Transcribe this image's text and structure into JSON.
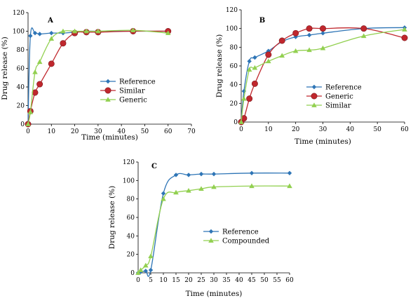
{
  "chart_data": [
    {
      "id": "A",
      "type": "line",
      "panel_label": "A",
      "xlabel": "Time (minutes)",
      "ylabel": "Drug release (%)",
      "xlim": [
        0,
        70
      ],
      "ylim": [
        0,
        120
      ],
      "xticks": [
        0,
        10,
        20,
        30,
        40,
        50,
        60,
        70
      ],
      "yticks": [
        0,
        20,
        40,
        60,
        80,
        100,
        120
      ],
      "grid": false,
      "legend_position": "center-right",
      "series": [
        {
          "name": "Reference",
          "color": "#2e75b6",
          "marker": "diamond",
          "x": [
            0,
            1,
            3,
            5,
            10,
            15,
            20,
            25,
            30,
            45,
            60
          ],
          "y": [
            0,
            95,
            98,
            97,
            98,
            98,
            99,
            100,
            100,
            100,
            100
          ]
        },
        {
          "name": "Similar",
          "color": "#c0272d",
          "marker": "circle",
          "x": [
            0,
            1,
            3,
            5,
            10,
            15,
            20,
            25,
            30,
            45,
            60
          ],
          "y": [
            0,
            14,
            34,
            43,
            65,
            87,
            98,
            99,
            99,
            100,
            100
          ]
        },
        {
          "name": "Generic",
          "color": "#92d050",
          "marker": "triangle",
          "x": [
            0,
            1,
            3,
            5,
            10,
            15,
            20,
            25,
            30,
            45,
            60
          ],
          "y": [
            0,
            13,
            56,
            67,
            92,
            100,
            100,
            100,
            100,
            101,
            98
          ]
        }
      ]
    },
    {
      "id": "B",
      "type": "line",
      "panel_label": "B",
      "xlabel": "Time (minutes)",
      "ylabel": "Drug release (%)",
      "xlim": [
        0,
        60
      ],
      "ylim": [
        0,
        120
      ],
      "xticks": [
        0,
        10,
        20,
        30,
        40,
        50,
        60
      ],
      "yticks": [
        0,
        20,
        40,
        60,
        80,
        100,
        120
      ],
      "grid": false,
      "legend_position": "bottom-right",
      "series": [
        {
          "name": "Reference",
          "color": "#2e75b6",
          "marker": "diamond",
          "x": [
            0,
            1,
            3,
            5,
            10,
            15,
            20,
            25,
            30,
            45,
            60
          ],
          "y": [
            0,
            33,
            65,
            69,
            76,
            86,
            91,
            93,
            95,
            100,
            101
          ]
        },
        {
          "name": "Generic",
          "color": "#c0272d",
          "marker": "circle",
          "x": [
            0,
            1,
            3,
            5,
            10,
            15,
            20,
            25,
            30,
            45,
            60
          ],
          "y": [
            0,
            4,
            25,
            41,
            72,
            87,
            95,
            100,
            100,
            100,
            90
          ]
        },
        {
          "name": "Similar",
          "color": "#92d050",
          "marker": "triangle",
          "x": [
            0,
            1,
            3,
            5,
            10,
            15,
            20,
            25,
            30,
            45,
            60
          ],
          "y": [
            0,
            25,
            56,
            58,
            65,
            71,
            76,
            77,
            79,
            92,
            99
          ]
        }
      ]
    },
    {
      "id": "C",
      "type": "line",
      "panel_label": "C",
      "xlabel": "Time (minutes)",
      "ylabel": "Drug release (%)",
      "xlim": [
        0,
        60
      ],
      "ylim": [
        0,
        120
      ],
      "xticks": [
        0,
        5,
        10,
        15,
        20,
        25,
        30,
        35,
        40,
        45,
        50,
        55,
        60
      ],
      "yticks": [
        0,
        20,
        40,
        60,
        80,
        100,
        120
      ],
      "grid": false,
      "legend_position": "center-right",
      "series": [
        {
          "name": "Reference",
          "color": "#2e75b6",
          "marker": "diamond",
          "x": [
            0,
            1,
            3,
            5,
            10,
            15,
            20,
            25,
            30,
            45,
            60
          ],
          "y": [
            0,
            1,
            2,
            3,
            86,
            106,
            106,
            107,
            107,
            108,
            108
          ]
        },
        {
          "name": "Compounded",
          "color": "#92d050",
          "marker": "triangle",
          "x": [
            0,
            1,
            3,
            5,
            10,
            15,
            20,
            25,
            30,
            45,
            60
          ],
          "y": [
            0,
            3,
            8,
            18,
            80,
            87,
            89,
            91,
            93,
            94,
            94
          ]
        }
      ]
    }
  ]
}
